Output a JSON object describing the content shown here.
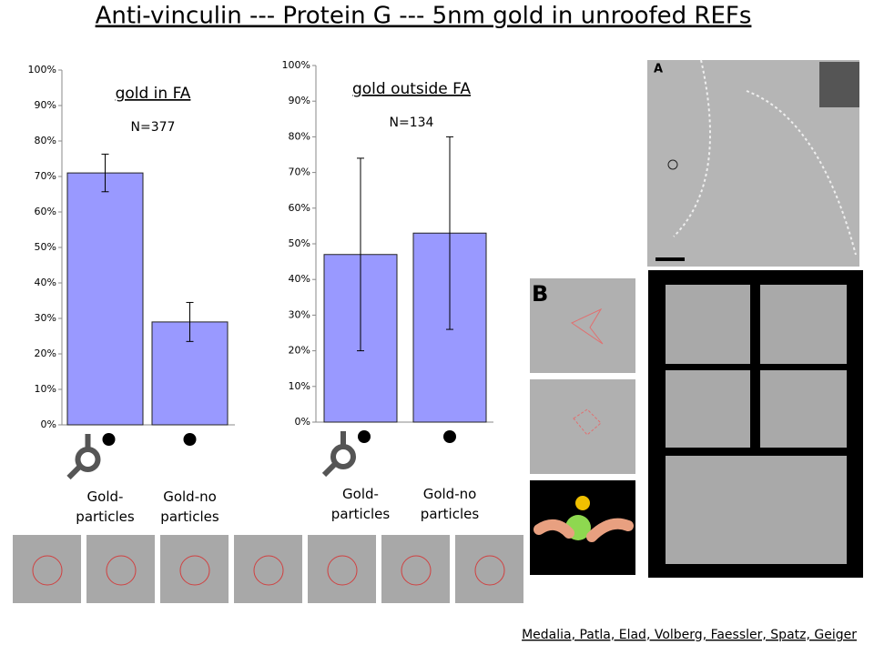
{
  "slide": {
    "title": "Anti-vinculin --- Protein G --- 5nm gold in unroofed REFs",
    "credits": "Medalia, Patla, Elad,  Volberg, Faessler, Spatz, Geiger",
    "panel_a": "A",
    "panel_b": "B"
  },
  "chart_data": [
    {
      "type": "bar",
      "title": "gold in FA",
      "annotation": "N=377",
      "categories": [
        "Gold-particles",
        "Gold-no particles"
      ],
      "values": [
        71,
        29
      ],
      "errors": [
        5.3,
        5.5
      ],
      "color": "#9999ff",
      "ylim": [
        0,
        100
      ],
      "yticks": [
        {
          "value": 0,
          "label": "0%"
        },
        {
          "value": 10,
          "label": "10%"
        },
        {
          "value": 20,
          "label": "20%"
        },
        {
          "value": 30,
          "label": "30%"
        },
        {
          "value": 40,
          "label": "40%"
        },
        {
          "value": 50,
          "label": "50%"
        },
        {
          "value": 60,
          "label": "60%"
        },
        {
          "value": 70,
          "label": "70%"
        },
        {
          "value": 80,
          "label": "80%"
        },
        {
          "value": 90,
          "label": "90%"
        },
        {
          "value": 100,
          "label": "100%"
        }
      ]
    },
    {
      "type": "bar",
      "title": "gold outside FA",
      "annotation": "N=134",
      "categories": [
        "Gold-particles",
        "Gold-no particles"
      ],
      "values": [
        47,
        53
      ],
      "errors": [
        27,
        27
      ],
      "color": "#9999ff",
      "ylim": [
        0,
        100
      ],
      "yticks": [
        {
          "value": 0,
          "label": "0%"
        },
        {
          "value": 10,
          "label": "10%"
        },
        {
          "value": 20,
          "label": "20%"
        },
        {
          "value": 30,
          "label": "30%"
        },
        {
          "value": 40,
          "label": "40%"
        },
        {
          "value": 50,
          "label": "50%"
        },
        {
          "value": 60,
          "label": "60%"
        },
        {
          "value": 70,
          "label": "70%"
        },
        {
          "value": 80,
          "label": "80%"
        },
        {
          "value": 90,
          "label": "90%"
        },
        {
          "value": 100,
          "label": "100%"
        }
      ]
    }
  ]
}
